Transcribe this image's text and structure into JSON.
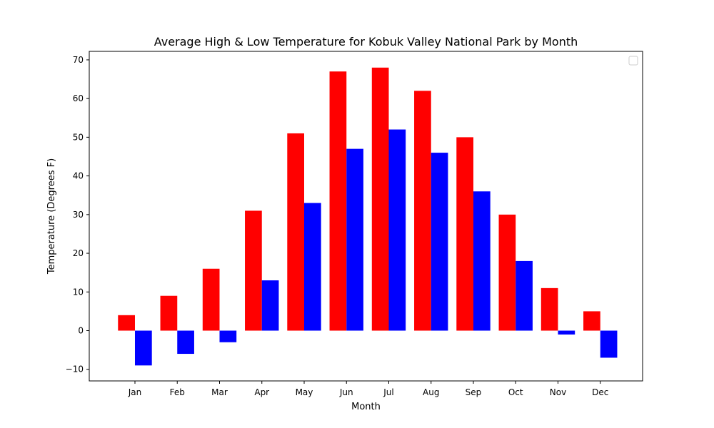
{
  "chart_data": {
    "type": "bar",
    "title": "Average High & Low Temperature for Kobuk Valley National Park by Month",
    "xlabel": "Month",
    "ylabel": "Temperature (Degrees F)",
    "categories": [
      "Jan",
      "Feb",
      "Mar",
      "Apr",
      "May",
      "Jun",
      "Jul",
      "Aug",
      "Sep",
      "Oct",
      "Nov",
      "Dec"
    ],
    "series": [
      {
        "color": "#ff0000",
        "values": [
          4,
          9,
          16,
          31,
          51,
          67,
          68,
          62,
          50,
          30,
          11,
          5
        ]
      },
      {
        "color": "#0000ff",
        "values": [
          -9,
          -6,
          -3,
          13,
          33,
          47,
          52,
          46,
          36,
          18,
          -1,
          -7
        ]
      }
    ],
    "ylim": [
      -13,
      72.2
    ],
    "yticks": [
      -10,
      0,
      10,
      20,
      30,
      40,
      50,
      60,
      70
    ],
    "grid": false,
    "legend": {
      "position": "top-right",
      "entries": []
    }
  }
}
